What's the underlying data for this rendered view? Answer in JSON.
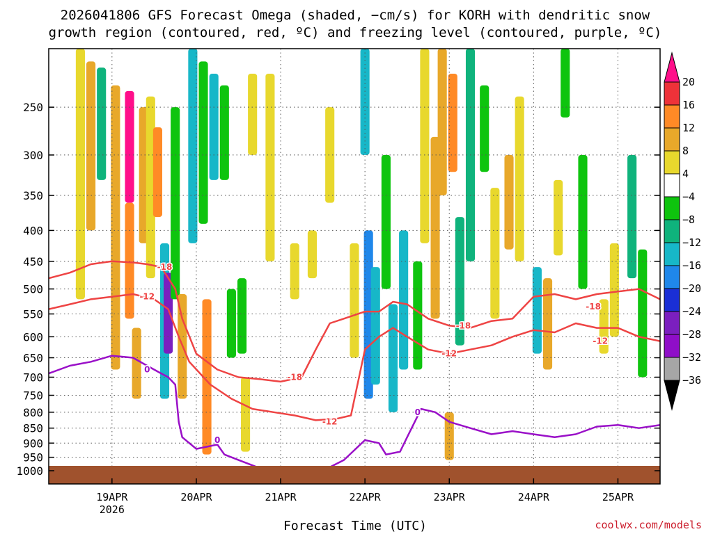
{
  "chart_data": {
    "type": "heatmap",
    "title_line1": "2026041806 GFS Forecast Omega (shaded, −cm/s) for KORH with dendritic snow",
    "title_line2": "growth region (contoured, red, ºC) and freezing level (contoured, purple, ºC)",
    "xlabel": "Forecast Time (UTC)",
    "credit": "coolwx.com/models",
    "y_axis": {
      "scale": "log-pressure",
      "range_hpa": [
        200,
        1000
      ],
      "ticks": [
        250,
        300,
        350,
        400,
        450,
        500,
        550,
        600,
        650,
        700,
        750,
        800,
        850,
        900,
        950,
        1000
      ]
    },
    "x_axis": {
      "range_hours_from_init": [
        0,
        174
      ],
      "ticks": [
        {
          "hour": 18,
          "label": "19APR",
          "sublabel": "2026"
        },
        {
          "hour": 42,
          "label": "20APR",
          "sublabel": ""
        },
        {
          "hour": 66,
          "label": "21APR",
          "sublabel": ""
        },
        {
          "hour": 90,
          "label": "22APR",
          "sublabel": ""
        },
        {
          "hour": 114,
          "label": "23APR",
          "sublabel": ""
        },
        {
          "hour": 138,
          "label": "24APR",
          "sublabel": ""
        },
        {
          "hour": 162,
          "label": "25APR",
          "sublabel": ""
        }
      ]
    },
    "grid": true,
    "colorbar": {
      "labels": [
        "20",
        "16",
        "12",
        "8",
        "4",
        "−4",
        "−8",
        "−12",
        "−16",
        "−20",
        "−24",
        "−28",
        "−32",
        "−36"
      ],
      "bins": [
        {
          "color": "#ff0f8a"
        },
        {
          "color": "#ee3239"
        },
        {
          "color": "#ff8a26"
        },
        {
          "color": "#e8a82a"
        },
        {
          "color": "#e8d82d"
        },
        {
          "color": "#ffffff"
        },
        {
          "color": "#0ec40e"
        },
        {
          "color": "#0fb37c"
        },
        {
          "color": "#17b7c8"
        },
        {
          "color": "#1f87ea"
        },
        {
          "color": "#1a2fd6"
        },
        {
          "color": "#7b1fbf"
        },
        {
          "color": "#8f0ec8"
        },
        {
          "color": "#a6a6a6"
        },
        {
          "color": "#000000"
        }
      ]
    },
    "omega_cells": [
      {
        "hour": 9,
        "p_top": 200,
        "p_bot": 520,
        "v": 5
      },
      {
        "hour": 12,
        "p_top": 210,
        "p_bot": 400,
        "v": 9
      },
      {
        "hour": 15,
        "p_top": 215,
        "p_bot": 330,
        "v": -8
      },
      {
        "hour": 19,
        "p_top": 230,
        "p_bot": 680,
        "v": 9
      },
      {
        "hour": 23,
        "p_top": 235,
        "p_bot": 360,
        "v": 22
      },
      {
        "hour": 23,
        "p_top": 360,
        "p_bot": 560,
        "v": 14
      },
      {
        "hour": 25,
        "p_top": 580,
        "p_bot": 760,
        "v": 10
      },
      {
        "hour": 27,
        "p_top": 250,
        "p_bot": 420,
        "v": 10
      },
      {
        "hour": 29,
        "p_top": 240,
        "p_bot": 480,
        "v": 7
      },
      {
        "hour": 31,
        "p_top": 270,
        "p_bot": 380,
        "v": 14
      },
      {
        "hour": 33,
        "p_top": 420,
        "p_bot": 760,
        "v": -14
      },
      {
        "hour": 34,
        "p_top": 470,
        "p_bot": 640,
        "v": -24
      },
      {
        "hour": 36,
        "p_top": 250,
        "p_bot": 520,
        "v": -6
      },
      {
        "hour": 38,
        "p_top": 510,
        "p_bot": 760,
        "v": 10
      },
      {
        "hour": 41,
        "p_top": 200,
        "p_bot": 420,
        "v": -12
      },
      {
        "hour": 44,
        "p_top": 210,
        "p_bot": 390,
        "v": -6
      },
      {
        "hour": 45,
        "p_top": 520,
        "p_bot": 940,
        "v": 12
      },
      {
        "hour": 47,
        "p_top": 220,
        "p_bot": 330,
        "v": -12
      },
      {
        "hour": 50,
        "p_top": 230,
        "p_bot": 330,
        "v": -6
      },
      {
        "hour": 52,
        "p_top": 500,
        "p_bot": 650,
        "v": -6
      },
      {
        "hour": 55,
        "p_top": 480,
        "p_bot": 640,
        "v": -6
      },
      {
        "hour": 56,
        "p_top": 700,
        "p_bot": 930,
        "v": 7
      },
      {
        "hour": 58,
        "p_top": 220,
        "p_bot": 300,
        "v": 6
      },
      {
        "hour": 63,
        "p_top": 220,
        "p_bot": 450,
        "v": 6
      },
      {
        "hour": 70,
        "p_top": 420,
        "p_bot": 520,
        "v": 6
      },
      {
        "hour": 75,
        "p_top": 400,
        "p_bot": 480,
        "v": 5
      },
      {
        "hour": 80,
        "p_top": 250,
        "p_bot": 360,
        "v": 6
      },
      {
        "hour": 87,
        "p_top": 420,
        "p_bot": 650,
        "v": 5
      },
      {
        "hour": 90,
        "p_top": 200,
        "p_bot": 300,
        "v": -14
      },
      {
        "hour": 91,
        "p_top": 400,
        "p_bot": 760,
        "v": -18
      },
      {
        "hour": 93,
        "p_top": 460,
        "p_bot": 720,
        "v": -14
      },
      {
        "hour": 96,
        "p_top": 300,
        "p_bot": 500,
        "v": -6
      },
      {
        "hour": 98,
        "p_top": 530,
        "p_bot": 800,
        "v": -12
      },
      {
        "hour": 101,
        "p_top": 400,
        "p_bot": 680,
        "v": -14
      },
      {
        "hour": 105,
        "p_top": 450,
        "p_bot": 680,
        "v": -6
      },
      {
        "hour": 107,
        "p_top": 200,
        "p_bot": 420,
        "v": 6
      },
      {
        "hour": 110,
        "p_top": 280,
        "p_bot": 560,
        "v": 9
      },
      {
        "hour": 112,
        "p_top": 200,
        "p_bot": 350,
        "v": 10
      },
      {
        "hour": 114,
        "p_top": 800,
        "p_bot": 960,
        "v": 9
      },
      {
        "hour": 115,
        "p_top": 220,
        "p_bot": 320,
        "v": 14
      },
      {
        "hour": 117,
        "p_top": 380,
        "p_bot": 620,
        "v": -10
      },
      {
        "hour": 120,
        "p_top": 200,
        "p_bot": 450,
        "v": -8
      },
      {
        "hour": 124,
        "p_top": 230,
        "p_bot": 320,
        "v": -6
      },
      {
        "hour": 127,
        "p_top": 340,
        "p_bot": 560,
        "v": 6
      },
      {
        "hour": 131,
        "p_top": 300,
        "p_bot": 430,
        "v": 8
      },
      {
        "hour": 134,
        "p_top": 240,
        "p_bot": 450,
        "v": 6
      },
      {
        "hour": 139,
        "p_top": 460,
        "p_bot": 640,
        "v": -12
      },
      {
        "hour": 142,
        "p_top": 480,
        "p_bot": 680,
        "v": 9
      },
      {
        "hour": 145,
        "p_top": 330,
        "p_bot": 440,
        "v": 7
      },
      {
        "hour": 147,
        "p_top": 200,
        "p_bot": 260,
        "v": -6
      },
      {
        "hour": 152,
        "p_top": 300,
        "p_bot": 500,
        "v": -6
      },
      {
        "hour": 158,
        "p_top": 520,
        "p_bot": 640,
        "v": 5
      },
      {
        "hour": 161,
        "p_top": 420,
        "p_bot": 600,
        "v": 6
      },
      {
        "hour": 166,
        "p_top": 300,
        "p_bot": 480,
        "v": -10
      },
      {
        "hour": 169,
        "p_top": 430,
        "p_bot": 700,
        "v": -6
      }
    ],
    "contours": [
      {
        "name": "-18C",
        "color": "#ee4444",
        "points": [
          [
            0,
            480
          ],
          [
            6,
            470
          ],
          [
            12,
            455
          ],
          [
            18,
            450
          ],
          [
            24,
            452
          ],
          [
            28,
            455
          ],
          [
            32,
            460
          ],
          [
            36,
            500
          ],
          [
            38,
            560
          ],
          [
            42,
            640
          ],
          [
            48,
            680
          ],
          [
            54,
            700
          ],
          [
            60,
            705
          ],
          [
            66,
            712
          ],
          [
            72,
            700
          ],
          [
            76,
            630
          ],
          [
            80,
            570
          ],
          [
            84,
            560
          ],
          [
            90,
            545
          ],
          [
            94,
            545
          ],
          [
            98,
            525
          ],
          [
            102,
            530
          ],
          [
            108,
            560
          ],
          [
            114,
            575
          ],
          [
            120,
            580
          ],
          [
            126,
            565
          ],
          [
            132,
            560
          ],
          [
            138,
            515
          ],
          [
            144,
            510
          ],
          [
            150,
            520
          ],
          [
            156,
            510
          ],
          [
            162,
            505
          ],
          [
            168,
            500
          ],
          [
            174,
            520
          ]
        ],
        "labels": [
          {
            "hour": 33,
            "p": 460,
            "text": "-18"
          },
          {
            "hour": 70,
            "p": 700,
            "text": "-18"
          },
          {
            "hour": 118,
            "p": 575,
            "text": "-18"
          },
          {
            "hour": 155,
            "p": 535,
            "text": "-18"
          }
        ]
      },
      {
        "name": "-12C",
        "color": "#ee4444",
        "points": [
          [
            0,
            540
          ],
          [
            6,
            530
          ],
          [
            12,
            520
          ],
          [
            18,
            515
          ],
          [
            24,
            510
          ],
          [
            30,
            520
          ],
          [
            34,
            540
          ],
          [
            37,
            600
          ],
          [
            40,
            660
          ],
          [
            46,
            720
          ],
          [
            52,
            760
          ],
          [
            58,
            790
          ],
          [
            64,
            800
          ],
          [
            70,
            810
          ],
          [
            76,
            825
          ],
          [
            82,
            820
          ],
          [
            86,
            810
          ],
          [
            90,
            630
          ],
          [
            94,
            600
          ],
          [
            98,
            580
          ],
          [
            102,
            600
          ],
          [
            108,
            630
          ],
          [
            114,
            640
          ],
          [
            120,
            630
          ],
          [
            126,
            620
          ],
          [
            132,
            600
          ],
          [
            138,
            585
          ],
          [
            144,
            590
          ],
          [
            150,
            570
          ],
          [
            156,
            580
          ],
          [
            162,
            580
          ],
          [
            168,
            600
          ],
          [
            174,
            610
          ]
        ],
        "labels": [
          {
            "hour": 28,
            "p": 515,
            "text": "-12"
          },
          {
            "hour": 80,
            "p": 830,
            "text": "-12"
          },
          {
            "hour": 114,
            "p": 640,
            "text": "-12"
          },
          {
            "hour": 157,
            "p": 610,
            "text": "-12"
          }
        ]
      },
      {
        "name": "freezing 0C",
        "color": "#9a10c8",
        "points": [
          [
            0,
            690
          ],
          [
            6,
            670
          ],
          [
            12,
            660
          ],
          [
            18,
            645
          ],
          [
            24,
            650
          ],
          [
            28,
            670
          ],
          [
            32,
            690
          ],
          [
            34,
            700
          ],
          [
            36,
            720
          ],
          [
            37,
            830
          ],
          [
            38,
            880
          ],
          [
            42,
            920
          ],
          [
            48,
            905
          ],
          [
            50,
            940
          ],
          [
            54,
            960
          ],
          [
            60,
            990
          ],
          [
            66,
            1000
          ],
          [
            72,
            995
          ],
          [
            78,
            1000
          ],
          [
            84,
            960
          ],
          [
            90,
            890
          ],
          [
            94,
            900
          ],
          [
            96,
            940
          ],
          [
            100,
            930
          ],
          [
            102,
            880
          ],
          [
            106,
            790
          ],
          [
            110,
            800
          ],
          [
            114,
            830
          ],
          [
            120,
            850
          ],
          [
            126,
            870
          ],
          [
            132,
            860
          ],
          [
            138,
            870
          ],
          [
            144,
            880
          ],
          [
            150,
            870
          ],
          [
            156,
            845
          ],
          [
            162,
            840
          ],
          [
            168,
            850
          ],
          [
            174,
            840
          ]
        ],
        "labels": [
          {
            "hour": 28,
            "p": 680,
            "text": "0"
          },
          {
            "hour": 48,
            "p": 890,
            "text": "0"
          },
          {
            "hour": 105,
            "p": 800,
            "text": "0"
          }
        ]
      }
    ]
  }
}
